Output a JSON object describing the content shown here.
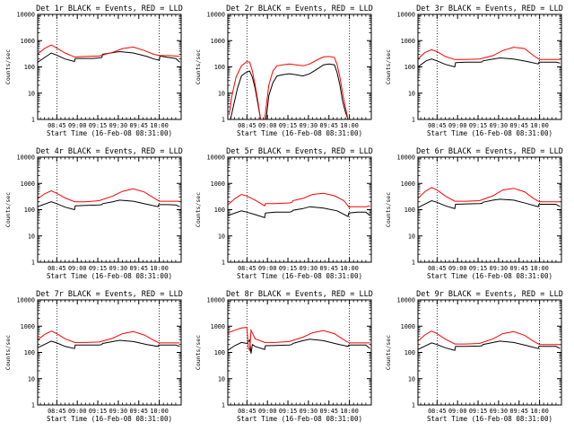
{
  "figure": {
    "background": "#ffffff",
    "events_color": "#000000",
    "lld_color": "#ff0000"
  },
  "chart_data": [
    {
      "type": "line",
      "title": "Det 1r BLACK = Events, RED = LLD",
      "xlabel": "Start Time (16-Feb-08 08:31:00)",
      "ylabel": "Counts/sec",
      "yscale": "log",
      "ylim": [
        1,
        10000
      ],
      "xlim_min": [
        0,
        105
      ],
      "x_tick_labels": [
        "08:45",
        "09:00",
        "09:15",
        "09:30",
        "09:45",
        "10:00"
      ],
      "y_tick_labels": [
        "1",
        "10",
        "100",
        "1000",
        "10000"
      ],
      "vlines_min": [
        14,
        89
      ],
      "series": [
        {
          "name": "Events",
          "color": "#000000",
          "x": [
            0,
            10,
            14,
            20,
            27,
            27.5,
            35,
            40,
            45,
            47,
            47.5,
            55,
            60,
            70,
            80,
            85,
            89,
            89.5,
            95,
            101,
            104
          ],
          "y": [
            150,
            340,
            280,
            200,
            160,
            210,
            210,
            210,
            220,
            230,
            300,
            350,
            380,
            340,
            250,
            200,
            180,
            260,
            230,
            210,
            150
          ]
        },
        {
          "name": "LLD",
          "color": "#ff0000",
          "x": [
            0,
            5,
            10,
            14,
            20,
            27,
            35,
            45,
            55,
            62,
            70,
            78,
            85,
            89,
            95,
            101,
            104
          ],
          "y": [
            310,
            500,
            680,
            520,
            340,
            240,
            250,
            260,
            360,
            500,
            570,
            420,
            300,
            270,
            270,
            260,
            250
          ]
        }
      ]
    },
    {
      "type": "line",
      "title": "Det 2r BLACK = Events, RED = LLD",
      "xlabel": "Start Time (16-Feb-08 08:31:00)",
      "ylabel": "Counts/sec",
      "yscale": "log",
      "ylim": [
        1,
        10000
      ],
      "xlim_min": [
        0,
        105
      ],
      "x_tick_labels": [
        "08:45",
        "09:00",
        "09:15",
        "09:30",
        "09:45",
        "10:00"
      ],
      "y_tick_labels": [
        "1",
        "10",
        "100",
        "1000",
        "10000"
      ],
      "vlines_min": [
        14,
        89
      ],
      "series": [
        {
          "name": "Events",
          "color": "#000000",
          "x": [
            2,
            4,
            7,
            10,
            13,
            16,
            18,
            20,
            22,
            24,
            28,
            30,
            33,
            36,
            40,
            45,
            50,
            55,
            60,
            65,
            70,
            74,
            78,
            80,
            82,
            84,
            86,
            88
          ],
          "y": [
            1,
            3,
            15,
            45,
            60,
            70,
            40,
            15,
            4,
            1,
            1,
            8,
            25,
            45,
            50,
            55,
            50,
            45,
            55,
            80,
            120,
            130,
            120,
            60,
            20,
            5,
            2,
            1
          ]
        },
        {
          "name": "LLD",
          "color": "#ff0000",
          "x": [
            1,
            3,
            6,
            10,
            14,
            16,
            18,
            20,
            22,
            24,
            27,
            30,
            33,
            36,
            40,
            45,
            50,
            55,
            60,
            65,
            70,
            74,
            78,
            80,
            82,
            84,
            86,
            88
          ],
          "y": [
            1.5,
            8,
            40,
            110,
            160,
            150,
            70,
            20,
            5,
            1,
            1,
            20,
            70,
            110,
            120,
            130,
            120,
            110,
            130,
            180,
            240,
            250,
            230,
            120,
            40,
            10,
            3,
            1
          ]
        }
      ]
    },
    {
      "type": "line",
      "title": "Det 3r BLACK = Events, RED = LLD",
      "xlabel": "Start Time (16-Feb-08 08:31:00)",
      "ylabel": "Counts/sec",
      "yscale": "log",
      "ylim": [
        1,
        10000
      ],
      "xlim_min": [
        0,
        105
      ],
      "x_tick_labels": [
        "08:45",
        "09:00",
        "09:15",
        "09:30",
        "09:45",
        "10:00"
      ],
      "y_tick_labels": [
        "1",
        "10",
        "100",
        "1000",
        "10000"
      ],
      "vlines_min": [
        14,
        89
      ],
      "series": [
        {
          "name": "Events",
          "color": "#000000",
          "x": [
            0,
            6,
            10,
            14,
            20,
            27,
            27.5,
            35,
            45,
            47,
            47.5,
            55,
            60,
            70,
            80,
            88,
            88.5,
            95,
            101,
            104
          ],
          "y": [
            100,
            170,
            200,
            170,
            125,
            100,
            145,
            150,
            150,
            155,
            170,
            200,
            220,
            200,
            160,
            130,
            150,
            150,
            150,
            140
          ]
        },
        {
          "name": "LLD",
          "color": "#ff0000",
          "x": [
            0,
            5,
            10,
            14,
            20,
            27,
            35,
            45,
            55,
            62,
            70,
            78,
            85,
            89,
            95,
            101,
            104
          ],
          "y": [
            200,
            350,
            450,
            380,
            250,
            190,
            190,
            200,
            270,
            420,
            560,
            500,
            260,
            190,
            190,
            190,
            190
          ]
        }
      ]
    },
    {
      "type": "line",
      "title": "Det 4r BLACK = Events, RED = LLD",
      "xlabel": "Start Time (16-Feb-08 08:31:00)",
      "ylabel": "Counts/sec",
      "yscale": "log",
      "ylim": [
        1,
        10000
      ],
      "xlim_min": [
        0,
        105
      ],
      "x_tick_labels": [
        "08:45",
        "09:00",
        "09:15",
        "09:30",
        "09:45",
        "10:00"
      ],
      "y_tick_labels": [
        "1",
        "10",
        "100",
        "1000",
        "10000"
      ],
      "vlines_min": [
        14,
        89
      ],
      "series": [
        {
          "name": "Events",
          "color": "#000000",
          "x": [
            0,
            10,
            14,
            20,
            27,
            27.5,
            35,
            45,
            47,
            47.5,
            55,
            60,
            70,
            80,
            88,
            88.5,
            95,
            101,
            104
          ],
          "y": [
            130,
            200,
            170,
            125,
            100,
            140,
            145,
            150,
            155,
            170,
            200,
            230,
            210,
            160,
            130,
            155,
            155,
            150,
            130
          ]
        },
        {
          "name": "LLD",
          "color": "#ff0000",
          "x": [
            0,
            5,
            10,
            14,
            20,
            27,
            35,
            45,
            55,
            62,
            70,
            78,
            85,
            89,
            95,
            101,
            104
          ],
          "y": [
            260,
            400,
            520,
            420,
            280,
            200,
            200,
            220,
            330,
            500,
            620,
            470,
            280,
            210,
            210,
            210,
            210
          ]
        }
      ]
    },
    {
      "type": "line",
      "title": "Det 5r BLACK = Events, RED = LLD",
      "xlabel": "Start Time (16-Feb-08 08:31:00)",
      "ylabel": "Counts/sec",
      "yscale": "log",
      "ylim": [
        1,
        10000
      ],
      "xlim_min": [
        0,
        105
      ],
      "x_tick_labels": [
        "08:45",
        "09:00",
        "09:15",
        "09:30",
        "09:45",
        "10:00"
      ],
      "y_tick_labels": [
        "1",
        "10",
        "100",
        "1000",
        "10000"
      ],
      "vlines_min": [
        14,
        89
      ],
      "series": [
        {
          "name": "Events",
          "color": "#000000",
          "x": [
            0,
            10,
            14,
            20,
            27,
            27.5,
            35,
            45,
            47,
            47.5,
            55,
            60,
            70,
            80,
            88,
            88.5,
            95,
            101,
            104
          ],
          "y": [
            60,
            90,
            80,
            65,
            50,
            75,
            80,
            80,
            85,
            95,
            110,
            130,
            115,
            90,
            55,
            75,
            80,
            80,
            60
          ]
        },
        {
          "name": "LLD",
          "color": "#ff0000",
          "x": [
            0,
            5,
            10,
            14,
            20,
            27,
            27.5,
            35,
            45,
            47,
            47.5,
            55,
            62,
            70,
            78,
            85,
            89,
            89.5,
            95,
            101,
            104
          ],
          "y": [
            150,
            260,
            380,
            330,
            230,
            140,
            170,
            170,
            180,
            190,
            220,
            270,
            380,
            420,
            340,
            220,
            120,
            130,
            130,
            130,
            140
          ]
        }
      ]
    },
    {
      "type": "line",
      "title": "Det 6r BLACK = Events, RED = LLD",
      "xlabel": "Start Time (16-Feb-08 08:31:00)",
      "ylabel": "Counts/sec",
      "yscale": "log",
      "ylim": [
        1,
        10000
      ],
      "xlim_min": [
        0,
        105
      ],
      "x_tick_labels": [
        "08:45",
        "09:00",
        "09:15",
        "09:30",
        "09:45",
        "10:00"
      ],
      "y_tick_labels": [
        "1",
        "10",
        "100",
        "1000",
        "10000"
      ],
      "vlines_min": [
        14,
        89
      ],
      "series": [
        {
          "name": "Events",
          "color": "#000000",
          "x": [
            0,
            10,
            14,
            20,
            27,
            27.5,
            35,
            45,
            47,
            47.5,
            55,
            60,
            70,
            80,
            88,
            88.5,
            95,
            101,
            104
          ],
          "y": [
            120,
            220,
            190,
            140,
            110,
            160,
            165,
            170,
            175,
            190,
            230,
            250,
            230,
            170,
            130,
            160,
            160,
            160,
            130
          ]
        },
        {
          "name": "LLD",
          "color": "#ff0000",
          "x": [
            0,
            5,
            10,
            14,
            20,
            27,
            35,
            45,
            55,
            62,
            70,
            78,
            85,
            89,
            95,
            101,
            104
          ],
          "y": [
            270,
            480,
            700,
            560,
            330,
            210,
            210,
            220,
            340,
            560,
            650,
            480,
            260,
            200,
            200,
            200,
            200
          ]
        }
      ]
    },
    {
      "type": "line",
      "title": "Det 7r BLACK = Events, RED = LLD",
      "xlabel": "Start Time (16-Feb-08 08:31:00)",
      "ylabel": "Counts/sec",
      "yscale": "log",
      "ylim": [
        1,
        10000
      ],
      "xlim_min": [
        0,
        105
      ],
      "x_tick_labels": [
        "08:45",
        "09:00",
        "09:15",
        "09:30",
        "09:45",
        "10:00"
      ],
      "y_tick_labels": [
        "1",
        "10",
        "100",
        "1000",
        "10000"
      ],
      "vlines_min": [
        14,
        89
      ],
      "series": [
        {
          "name": "Events",
          "color": "#000000",
          "x": [
            0,
            10,
            14,
            20,
            27,
            27.5,
            35,
            45,
            47,
            47.5,
            55,
            60,
            70,
            80,
            88,
            88.5,
            95,
            101,
            104
          ],
          "y": [
            150,
            270,
            230,
            170,
            140,
            190,
            190,
            190,
            200,
            220,
            260,
            290,
            260,
            200,
            170,
            190,
            190,
            190,
            170
          ]
        },
        {
          "name": "LLD",
          "color": "#ff0000",
          "x": [
            0,
            5,
            10,
            14,
            20,
            27,
            35,
            45,
            55,
            62,
            70,
            78,
            85,
            89,
            95,
            101,
            104
          ],
          "y": [
            300,
            480,
            650,
            520,
            330,
            240,
            240,
            250,
            350,
            520,
            620,
            460,
            290,
            230,
            230,
            230,
            230
          ]
        }
      ]
    },
    {
      "type": "line",
      "title": "Det 8r BLACK = Events, RED = LLD",
      "xlabel": "Start Time (16-Feb-08 08:31:00)",
      "ylabel": "Counts/sec",
      "yscale": "log",
      "ylim": [
        1,
        10000
      ],
      "xlim_min": [
        0,
        105
      ],
      "x_tick_labels": [
        "08:45",
        "09:00",
        "09:15",
        "09:30",
        "09:45",
        "10:00"
      ],
      "y_tick_labels": [
        "1",
        "10",
        "100",
        "1000",
        "10000"
      ],
      "vlines_min": [
        14,
        89
      ],
      "series": [
        {
          "name": "Events",
          "color": "#000000",
          "x": [
            0,
            5,
            10,
            14,
            16,
            17,
            18,
            20,
            27,
            27.5,
            35,
            45,
            47,
            47.5,
            55,
            60,
            70,
            80,
            88,
            88.5,
            95,
            101,
            104
          ],
          "y": [
            120,
            180,
            240,
            220,
            300,
            90,
            200,
            170,
            130,
            180,
            185,
            190,
            200,
            220,
            280,
            320,
            280,
            210,
            170,
            190,
            190,
            190,
            140
          ]
        },
        {
          "name": "LLD",
          "color": "#ff0000",
          "x": [
            0,
            5,
            10,
            14,
            15,
            16,
            17,
            18,
            20,
            27,
            35,
            45,
            55,
            62,
            70,
            78,
            85,
            89,
            95,
            101,
            104
          ],
          "y": [
            550,
            700,
            850,
            900,
            150,
            120,
            700,
            550,
            330,
            240,
            240,
            260,
            380,
            560,
            680,
            520,
            300,
            230,
            230,
            230,
            230
          ]
        }
      ]
    },
    {
      "type": "line",
      "title": "Det 9r BLACK = Events, RED = LLD",
      "xlabel": "Start Time (16-Feb-08 08:31:00)",
      "ylabel": "Counts/sec",
      "yscale": "log",
      "ylim": [
        1,
        10000
      ],
      "xlim_min": [
        0,
        105
      ],
      "x_tick_labels": [
        "08:45",
        "09:00",
        "09:15",
        "09:30",
        "09:45",
        "10:00"
      ],
      "y_tick_labels": [
        "1",
        "10",
        "100",
        "1000",
        "10000"
      ],
      "vlines_min": [
        14,
        89
      ],
      "series": [
        {
          "name": "Events",
          "color": "#000000",
          "x": [
            0,
            10,
            14,
            20,
            27,
            27.5,
            35,
            45,
            47,
            47.5,
            55,
            60,
            70,
            80,
            88,
            88.5,
            95,
            101,
            104
          ],
          "y": [
            130,
            230,
            200,
            150,
            120,
            170,
            170,
            175,
            180,
            200,
            240,
            270,
            240,
            180,
            140,
            170,
            170,
            170,
            140
          ]
        },
        {
          "name": "LLD",
          "color": "#ff0000",
          "x": [
            0,
            5,
            10,
            14,
            20,
            27,
            35,
            45,
            55,
            62,
            70,
            78,
            85,
            89,
            95,
            101,
            104
          ],
          "y": [
            270,
            460,
            650,
            520,
            320,
            210,
            210,
            220,
            330,
            520,
            620,
            450,
            260,
            200,
            200,
            200,
            200
          ]
        }
      ]
    }
  ]
}
